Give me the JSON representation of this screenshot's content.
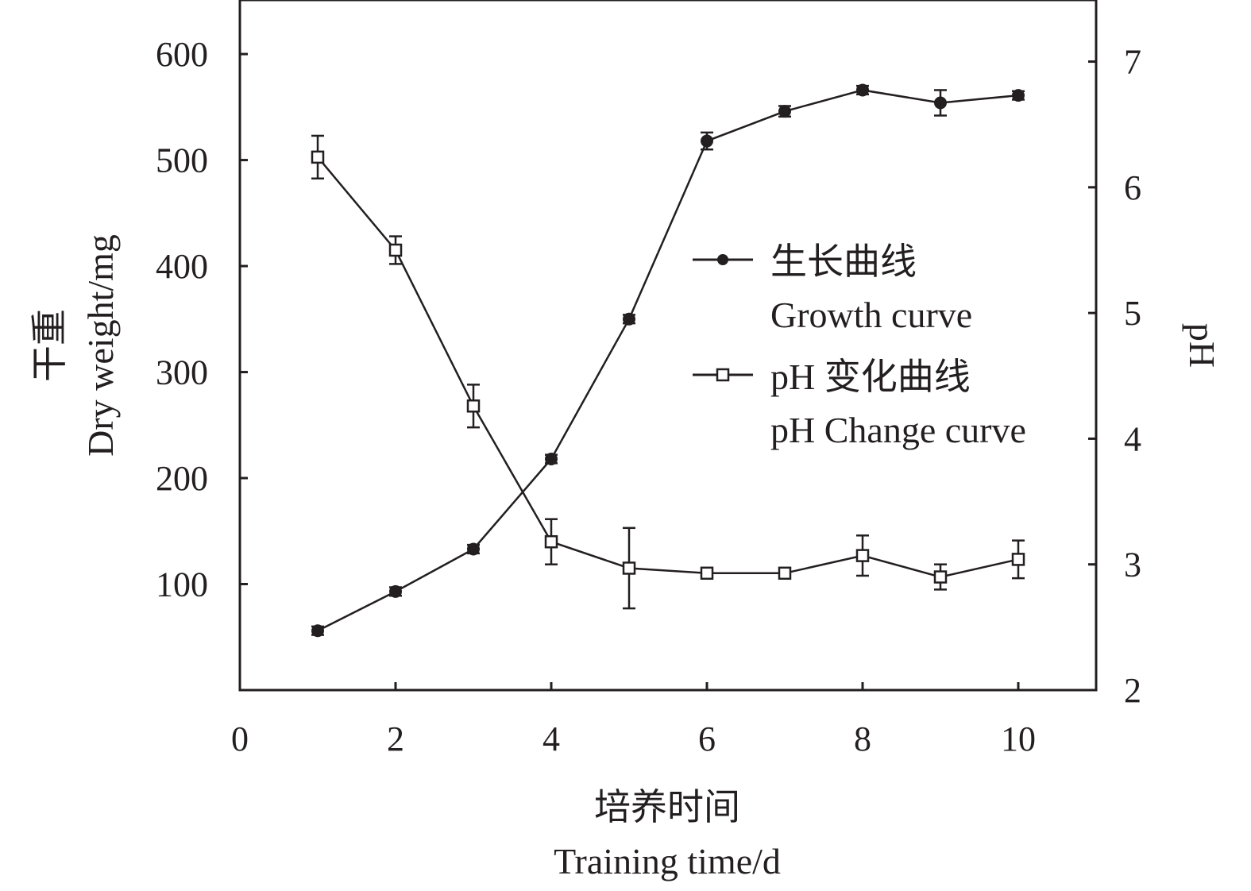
{
  "chart_data": {
    "type": "line",
    "x": [
      1,
      2,
      3,
      4,
      5,
      6,
      7,
      8,
      9,
      10
    ],
    "xlim": [
      0,
      11
    ],
    "xticks": [
      0,
      2,
      4,
      6,
      8,
      10
    ],
    "xlabel": [
      "培养时间",
      "Training time/d"
    ],
    "ylabel_left": [
      "干重",
      "Dry weight/mg"
    ],
    "ylabel_right": "pH",
    "ylim_left": [
      0,
      651
    ],
    "yticks_left": [
      100,
      200,
      300,
      400,
      500,
      600
    ],
    "ylim_right": [
      2,
      7.49
    ],
    "yticks_right": [
      2,
      3,
      4,
      5,
      6,
      7
    ],
    "grid": false,
    "legend_position": "center-right",
    "series": [
      {
        "name": "生长曲线",
        "name_en": "Growth curve",
        "axis": "left",
        "marker": "filled-circle",
        "values": [
          56,
          93,
          133,
          218,
          350,
          518,
          546,
          566,
          554,
          561
        ],
        "errors": [
          4,
          4,
          4,
          4,
          4,
          8,
          5,
          4,
          12,
          4
        ]
      },
      {
        "name": "pH 变化曲线",
        "name_en": "pH Change curve",
        "axis": "right",
        "marker": "open-square",
        "values": [
          6.24,
          5.5,
          4.26,
          3.18,
          2.97,
          2.93,
          2.93,
          3.07,
          2.9,
          3.04
        ],
        "errors": [
          0.17,
          0.11,
          0.17,
          0.18,
          0.32,
          0.02,
          0.02,
          0.16,
          0.1,
          0.15
        ]
      }
    ]
  },
  "colors": {
    "ink": "#231f20"
  }
}
